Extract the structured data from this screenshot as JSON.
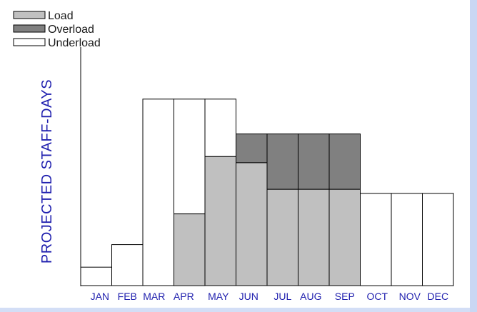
{
  "chart_data": {
    "type": "bar",
    "stacked": true,
    "title": "",
    "xlabel": "",
    "ylabel": "PROJECTED STAFF-DAYS",
    "categories": [
      "JAN",
      "FEB",
      "MAR",
      "APR",
      "MAY",
      "JUN",
      "JUL",
      "AUG",
      "SEP",
      "OCT",
      "NOV",
      "DEC"
    ],
    "ylim": [
      0,
      100
    ],
    "grid": false,
    "legend_position": "top-left",
    "series": [
      {
        "name": "Load",
        "color": "#c0c0c0",
        "values": [
          0,
          0,
          0,
          35,
          63,
          60,
          47,
          47,
          47,
          0,
          0,
          0
        ]
      },
      {
        "name": "Overload",
        "color": "#808080",
        "values": [
          0,
          0,
          0,
          0,
          0,
          14,
          27,
          27,
          27,
          0,
          0,
          0
        ]
      },
      {
        "name": "Underload",
        "color": "#ffffff",
        "values": [
          9,
          20,
          91,
          56,
          28,
          0,
          0,
          0,
          0,
          45,
          45,
          45
        ]
      }
    ]
  }
}
